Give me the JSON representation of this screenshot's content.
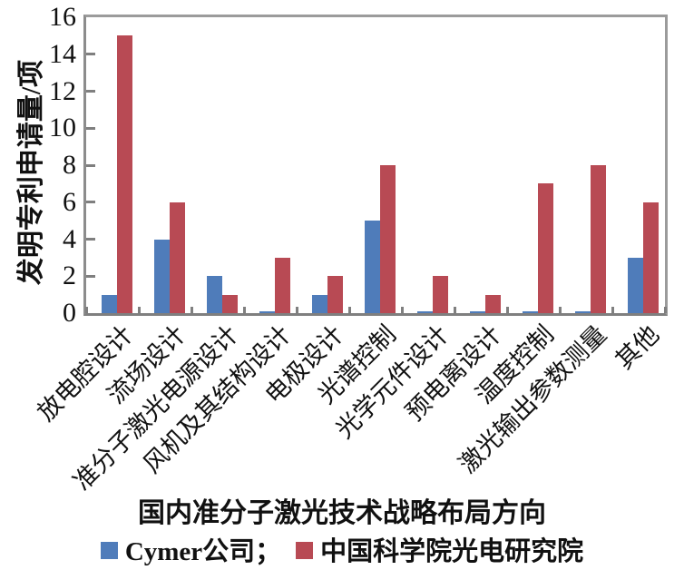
{
  "figure": {
    "y_axis_title": "发明专利申请量/项",
    "x_axis_title": "国内准分子激光技术战略布局方向",
    "legend": [
      {
        "label": "Cymer公司；",
        "color": "#4f7cba"
      },
      {
        "label": "中国科学院光电研究院",
        "color": "#b84a54"
      }
    ]
  },
  "chart_data": {
    "type": "bar",
    "title": "",
    "xlabel": "国内准分子激光技术战略布局方向",
    "ylabel": "发明专利申请量/项",
    "categories": [
      "放电腔设计",
      "流场设计",
      "准分子激光电源设计",
      "风机及其结构设计",
      "电极设计",
      "光谱控制",
      "光学元件设计",
      "预电离设计",
      "温度控制",
      "激光输出参数测量",
      "其他"
    ],
    "series": [
      {
        "name": "Cymer公司",
        "color": "#4f7cba",
        "values": [
          1,
          4,
          2,
          0.1,
          1,
          5,
          0.1,
          0.1,
          0.1,
          0.1,
          3
        ]
      },
      {
        "name": "中国科学院光电研究院",
        "color": "#b84a54",
        "values": [
          15,
          6,
          1,
          3,
          2,
          8,
          2,
          1,
          7,
          8,
          6
        ]
      }
    ],
    "ylim": [
      0,
      16
    ],
    "yticks": [
      0,
      2,
      4,
      6,
      8,
      10,
      12,
      14,
      16
    ],
    "grid": false,
    "legend_position": "bottom",
    "tick_style": "inside",
    "axis_color": "#9b9b9b",
    "tick_color": "#7f7f7f"
  }
}
